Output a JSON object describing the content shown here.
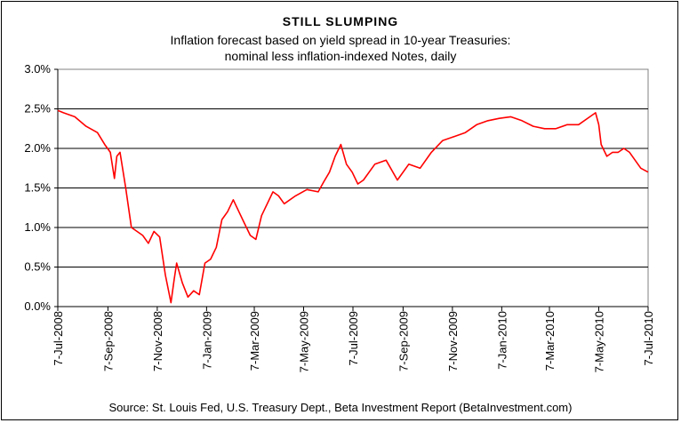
{
  "chart_data": {
    "type": "line",
    "title": "STILL SLUMPING",
    "subtitle_lines": [
      "Inflation forecast based on yield spread in 10-year Treasuries:",
      "nominal less inflation-indexed Notes, daily"
    ],
    "xlabel": "",
    "ylabel": "",
    "ylim": [
      0,
      3.0
    ],
    "y_ticks": [
      "0.0%",
      "0.5%",
      "1.0%",
      "1.5%",
      "2.0%",
      "2.5%",
      "3.0%"
    ],
    "x_ticks": [
      "7-Jul-2008",
      "7-Sep-2008",
      "7-Nov-2008",
      "7-Jan-2009",
      "7-Mar-2009",
      "7-May-2009",
      "7-Jul-2009",
      "7-Sep-2009",
      "7-Nov-2009",
      "7-Jan-2010",
      "7-Mar-2010",
      "7-May-2010",
      "7-Jul-2010"
    ],
    "grid": "horizontal",
    "series": [
      {
        "color": "#ff0000",
        "x": [
          "2008-07-07",
          "2008-07-14",
          "2008-07-28",
          "2008-08-11",
          "2008-08-25",
          "2008-09-03",
          "2008-09-10",
          "2008-09-15",
          "2008-09-18",
          "2008-09-22",
          "2008-09-29",
          "2008-10-06",
          "2008-10-13",
          "2008-10-20",
          "2008-10-27",
          "2008-11-03",
          "2008-11-10",
          "2008-11-17",
          "2008-11-24",
          "2008-11-28",
          "2008-12-01",
          "2008-12-08",
          "2008-12-15",
          "2008-12-22",
          "2008-12-29",
          "2009-01-05",
          "2009-01-12",
          "2009-01-19",
          "2009-01-26",
          "2009-02-02",
          "2009-02-09",
          "2009-02-16",
          "2009-02-23",
          "2009-03-02",
          "2009-03-09",
          "2009-03-16",
          "2009-03-23",
          "2009-03-30",
          "2009-04-06",
          "2009-04-13",
          "2009-04-27",
          "2009-05-11",
          "2009-05-25",
          "2009-06-01",
          "2009-06-08",
          "2009-06-15",
          "2009-06-22",
          "2009-06-29",
          "2009-07-06",
          "2009-07-13",
          "2009-07-20",
          "2009-08-03",
          "2009-08-17",
          "2009-08-31",
          "2009-09-14",
          "2009-09-28",
          "2009-10-12",
          "2009-10-26",
          "2009-11-09",
          "2009-11-23",
          "2009-12-07",
          "2009-12-21",
          "2010-01-04",
          "2010-01-18",
          "2010-02-01",
          "2010-02-15",
          "2010-03-01",
          "2010-03-15",
          "2010-03-29",
          "2010-04-12",
          "2010-04-26",
          "2010-05-03",
          "2010-05-07",
          "2010-05-10",
          "2010-05-17",
          "2010-05-24",
          "2010-05-31",
          "2010-06-07",
          "2010-06-14",
          "2010-06-21",
          "2010-06-28",
          "2010-07-07"
        ],
        "values": [
          2.48,
          2.45,
          2.4,
          2.28,
          2.2,
          2.05,
          1.95,
          1.62,
          1.9,
          1.95,
          1.5,
          1.0,
          0.95,
          0.9,
          0.8,
          0.95,
          0.88,
          0.4,
          0.05,
          0.35,
          0.55,
          0.3,
          0.12,
          0.2,
          0.15,
          0.55,
          0.6,
          0.75,
          1.1,
          1.2,
          1.35,
          1.2,
          1.05,
          0.9,
          0.85,
          1.15,
          1.3,
          1.45,
          1.4,
          1.3,
          1.4,
          1.48,
          1.45,
          1.58,
          1.7,
          1.9,
          2.05,
          1.8,
          1.7,
          1.55,
          1.6,
          1.8,
          1.85,
          1.6,
          1.8,
          1.75,
          1.95,
          2.1,
          2.15,
          2.2,
          2.3,
          2.35,
          2.38,
          2.4,
          2.35,
          2.28,
          2.25,
          2.25,
          2.3,
          2.3,
          2.4,
          2.45,
          2.3,
          2.05,
          1.9,
          1.95,
          1.95,
          2.0,
          1.95,
          1.85,
          1.75,
          1.7
        ]
      }
    ],
    "source": "Source: St. Louis Fed, U.S. Treasury Dept., Beta Investment Report (BetaInvestment.com)"
  }
}
